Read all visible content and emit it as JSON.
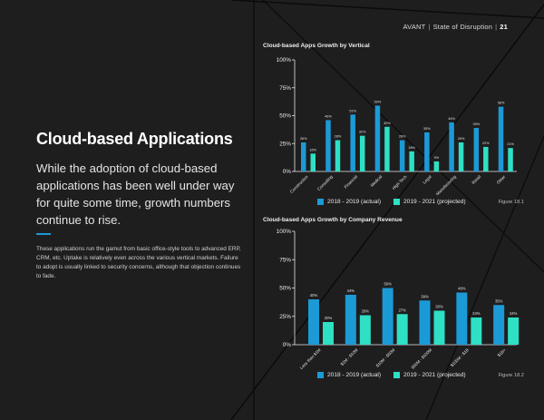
{
  "header": {
    "company": "AVANT",
    "report": "State of Disruption",
    "page": "21"
  },
  "title": "Cloud-based Applications",
  "lead": "While the adoption of cloud-based applications has been well under way for quite some time, growth numbers continue to rise.",
  "body": "These applications run the gamut from basic office-style tools to advanced ERP, CRM, etc. Uptake is relatively even across the various vertical markets. Failure to adopt is usually linked to security concerns, although that objection continues to fade.",
  "colors": {
    "actual": "#1c9ad6",
    "projected": "#2ee0c4",
    "background": "#1f1e1f",
    "accent_lines": "#0a0a0a"
  },
  "chart_data": [
    {
      "type": "bar",
      "title": "Cloud-based Apps Growth by Vertical",
      "categories": [
        "Construction",
        "Consulting",
        "Financial",
        "Medical",
        "High Tech",
        "Legal",
        "Manufacturing",
        "Retail",
        "Other"
      ],
      "series": [
        {
          "name": "2018 - 2019 (actual)",
          "values": [
            26,
            46,
            51,
            59,
            28,
            35,
            44,
            39,
            58
          ],
          "labels": [
            "26%",
            "46%",
            "51%",
            "59%",
            "28%",
            "35%",
            "44%",
            "39%",
            "58%"
          ]
        },
        {
          "name": "2019 - 2021 (projected)",
          "values": [
            16,
            28,
            32,
            40,
            18,
            9,
            26,
            22,
            21
          ],
          "labels": [
            "16%",
            "28%",
            "32%",
            "40%",
            "18%",
            "9%",
            "26%",
            "22%",
            "21%"
          ]
        }
      ],
      "yticks": [
        "0%",
        "25%",
        "50%",
        "75%",
        "100%"
      ],
      "ylim": [
        0,
        100
      ],
      "figure_label": "Figure 18.1"
    },
    {
      "type": "bar",
      "title": "Cloud-based Apps Growth by Company Revenue",
      "categories": [
        "Less than $1M",
        "$1M - $10M",
        "$10M - $50M",
        "$50M - $100M",
        "$100M - $1B",
        "$1B+"
      ],
      "series": [
        {
          "name": "2018 - 2019 (actual)",
          "values": [
            40,
            44,
            50,
            39,
            46,
            35
          ],
          "labels": [
            "40%",
            "44%",
            "50%",
            "39%",
            "46%",
            "35%"
          ]
        },
        {
          "name": "2019 - 2021 (projected)",
          "values": [
            20,
            26,
            27,
            30,
            24,
            24
          ],
          "labels": [
            "20%",
            "26%",
            "27%",
            "30%",
            "24%",
            "24%"
          ]
        }
      ],
      "yticks": [
        "0%",
        "25%",
        "50%",
        "75%",
        "100%"
      ],
      "ylim": [
        0,
        100
      ],
      "figure_label": "Figure 18.2"
    }
  ]
}
